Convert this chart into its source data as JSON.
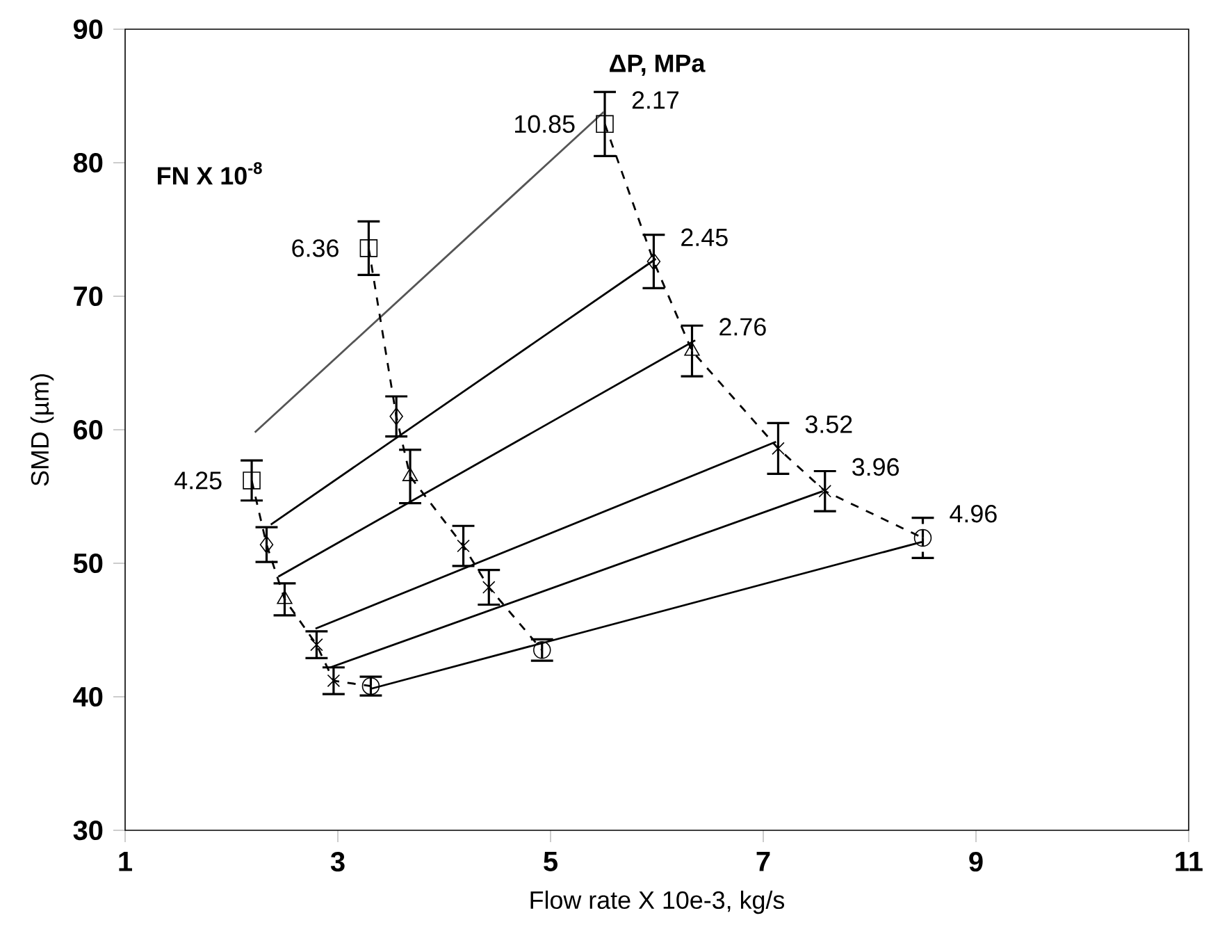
{
  "chart_data": {
    "type": "scatter",
    "xlabel": "Flow rate X 10e-3, kg/s",
    "ylabel": "SMD (µm)",
    "xlim": [
      1,
      11
    ],
    "ylim": [
      30,
      90
    ],
    "xticks": [
      1,
      3,
      5,
      7,
      9,
      11
    ],
    "yticks": [
      30,
      40,
      50,
      60,
      70,
      80,
      90
    ],
    "annotations": [
      "ΔP, MPa",
      "FN X 10$^{-8}$",
      {
        "text": "4.25",
        "x": 2.19,
        "y": 56.2
      },
      {
        "text": "6.36",
        "x": 3.29,
        "y": 73.6
      },
      {
        "text": "10.85",
        "x": 5.51,
        "y": 82.9
      }
    ],
    "series": [
      {
        "name": "2.17",
        "type": "scatter",
        "marker": "square",
        "color": "#000000",
        "x": [
          2.19,
          3.29,
          5.51
        ],
        "values": [
          56.2,
          73.6,
          82.9
        ],
        "errors": [
          1.5,
          2,
          2.4
        ]
      },
      {
        "name": "2.45",
        "type": "scatter",
        "marker": "diamond",
        "color": "#000000",
        "x": [
          2.33,
          3.55,
          5.97
        ],
        "values": [
          51.4,
          61.0,
          72.6
        ],
        "errors": [
          1.3,
          1.5,
          2
        ]
      },
      {
        "name": "2.76",
        "type": "scatter",
        "marker": "triangle",
        "color": "#000000",
        "x": [
          2.5,
          3.68,
          6.33
        ],
        "values": [
          47.3,
          56.5,
          65.9
        ],
        "errors": [
          1.2,
          2,
          1.9
        ]
      },
      {
        "name": "3.52",
        "type": "scatter",
        "marker": "cross",
        "color": "#000000",
        "x": [
          2.8,
          4.18,
          7.14
        ],
        "values": [
          43.9,
          51.3,
          58.6
        ],
        "errors": [
          1,
          1.5,
          1.9
        ]
      },
      {
        "name": "3.96",
        "type": "scatter",
        "marker": "cross",
        "color": "#000000",
        "x": [
          2.96,
          4.42,
          7.58
        ],
        "values": [
          41.2,
          48.2,
          55.4
        ],
        "errors": [
          1,
          1.3,
          1.5
        ]
      },
      {
        "name": "4.96",
        "type": "scatter",
        "marker": "circle",
        "color": "#000000",
        "x": [
          3.31,
          4.92,
          8.5
        ],
        "values": [
          40.8,
          43.5,
          51.9
        ],
        "errors": [
          0.7,
          0.8,
          1.5
        ]
      },
      {
        "type": "line",
        "color": "#555555",
        "x": [
          2.22,
          5.5
        ],
        "values": [
          59.8,
          83.8
        ]
      },
      {
        "type": "line",
        "color": "#000000",
        "x": [
          2.37,
          5.99
        ],
        "values": [
          52.9,
          72.8
        ]
      },
      {
        "type": "line",
        "color": "#000000",
        "x": [
          2.44,
          6.36
        ],
        "values": [
          49.0,
          66.7
        ]
      },
      {
        "type": "line",
        "color": "#000000",
        "x": [
          2.79,
          7.12
        ],
        "values": [
          45.1,
          59.1
        ]
      },
      {
        "type": "line",
        "color": "#000000",
        "x": [
          2.93,
          7.56
        ],
        "values": [
          42.2,
          55.4
        ]
      },
      {
        "type": "line",
        "color": "#000000",
        "x": [
          3.31,
          8.49
        ],
        "values": [
          40.6,
          51.6
        ]
      },
      {
        "type": "line",
        "line_style": "dashed",
        "color": "#000000",
        "x": [
          2.19,
          2.33,
          2.5,
          2.8,
          2.96,
          3.31
        ],
        "values": [
          56.2,
          51.4,
          47.3,
          43.9,
          41.2,
          40.8
        ]
      },
      {
        "type": "line",
        "line_style": "dashed",
        "color": "#000000",
        "x": [
          3.29,
          3.55,
          3.68,
          4.18,
          4.42,
          4.92
        ],
        "values": [
          73.6,
          61.0,
          56.5,
          51.3,
          48.2,
          43.5
        ]
      },
      {
        "type": "line",
        "line_style": "dashed",
        "color": "#000000",
        "x": [
          5.51,
          5.97,
          6.33,
          7.14,
          7.58,
          8.5
        ],
        "values": [
          82.9,
          72.6,
          65.9,
          58.6,
          55.4,
          51.9
        ]
      }
    ]
  }
}
